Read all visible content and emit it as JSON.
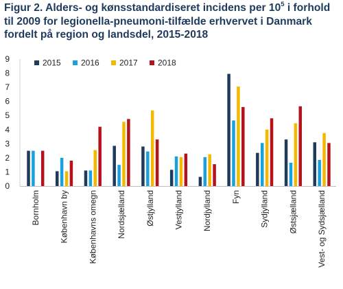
{
  "title": {
    "line1_before_sup": "Figur 2. Alders- og kønsstandardiseret incidens per 10",
    "line1_sup": "5",
    "line1_after_sup": " i forhold",
    "line2": "til 2009 for legionella-pneumoni-tilfælde erhvervet i Danmark",
    "line3": "fordelt på region og landsdel, 2015-2018"
  },
  "chart_data": {
    "type": "bar",
    "title": "",
    "xlabel": "",
    "ylabel": "",
    "ylim": [
      0,
      9
    ],
    "yticks": [
      0,
      1,
      2,
      3,
      4,
      5,
      6,
      7,
      8,
      9
    ],
    "grid": false,
    "legend_position": "top",
    "categories": [
      "Bornholm",
      "København by",
      "Københavns omegn",
      "Nordsjælland",
      "Østjylland",
      "Vestjylland",
      "Nordjylland",
      "Fyn",
      "Sydjylland",
      "Østsjælland",
      "Vest- og Sydsjælland"
    ],
    "series": [
      {
        "name": "2015",
        "color": "#1f3b5c",
        "values": [
          2.5,
          1.05,
          1.1,
          2.85,
          2.8,
          1.15,
          0.65,
          7.95,
          2.35,
          3.3,
          3.1
        ]
      },
      {
        "name": "2016",
        "color": "#1aa0dc",
        "values": [
          2.5,
          2.0,
          1.1,
          1.5,
          2.45,
          2.1,
          2.05,
          4.65,
          3.05,
          1.65,
          1.85
        ]
      },
      {
        "name": "2017",
        "color": "#f5b800",
        "values": [
          0,
          1.05,
          2.55,
          4.55,
          5.35,
          2.05,
          2.25,
          7.05,
          4.0,
          4.45,
          3.75
        ]
      },
      {
        "name": "2018",
        "color": "#b5121b",
        "values": [
          2.5,
          1.8,
          4.2,
          4.75,
          3.3,
          2.3,
          1.55,
          5.6,
          4.8,
          5.65,
          3.05
        ]
      }
    ]
  }
}
